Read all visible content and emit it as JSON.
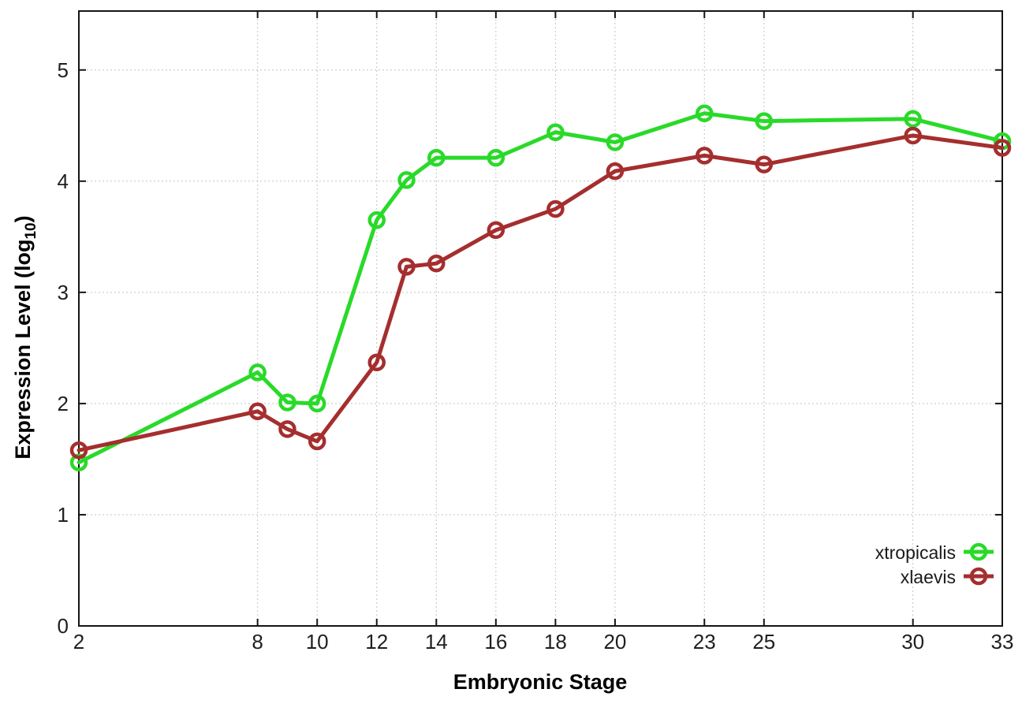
{
  "figure": {
    "background": "#FFFFFF"
  },
  "chart_data": {
    "type": "line",
    "title": "",
    "xlabel": "Embryonic Stage",
    "ylabel": "Expression Level (log10)",
    "ylabel_parts": {
      "main": "Expression Level (log",
      "sub": "10",
      "close": ")"
    },
    "x": [
      2,
      8,
      9,
      10,
      12,
      13,
      14,
      16,
      18,
      20,
      23,
      25,
      30,
      33
    ],
    "series": [
      {
        "name": "xtropicalis",
        "color": "#29DA29",
        "values": [
          1.47,
          2.28,
          2.01,
          2.0,
          3.65,
          4.01,
          4.21,
          4.21,
          4.44,
          4.35,
          4.61,
          4.54,
          4.56,
          4.36
        ]
      },
      {
        "name": "xlaevis",
        "color": "#A52E2E",
        "values": [
          1.58,
          1.93,
          1.77,
          1.66,
          2.37,
          3.23,
          3.26,
          3.56,
          3.75,
          4.09,
          4.23,
          4.15,
          4.41,
          4.3
        ]
      }
    ],
    "xlim": [
      2,
      33
    ],
    "ylim": [
      0,
      5.53
    ],
    "xticks": [
      2,
      8,
      10,
      12,
      14,
      16,
      18,
      20,
      23,
      25,
      30,
      33
    ],
    "yticks": [
      0,
      1,
      2,
      3,
      4,
      5
    ],
    "grid": true,
    "grid_color": "#C4C4C4",
    "axis_color": "#151515",
    "text_color": "#1F1F1F",
    "legend_position": "inside-bottom-right",
    "marker": "open-circle"
  }
}
